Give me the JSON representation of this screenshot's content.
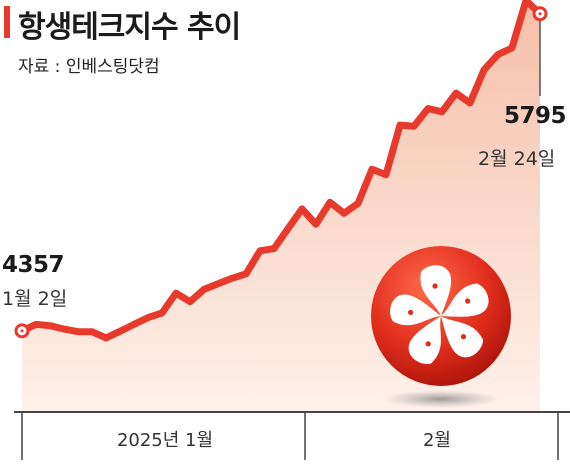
{
  "header": {
    "title": "항생테크지수 추이",
    "source": "자료 : 인베스팅닷컴"
  },
  "annotations": {
    "start_value": "4357",
    "start_date": "1월 2일",
    "end_value": "5795",
    "end_date": "2월 24일"
  },
  "colors": {
    "line": "#e83a2c",
    "area_top": "#f6bfa8",
    "area_bottom": "#fdf1ea",
    "axis": "#444444"
  },
  "chart_data": {
    "type": "area",
    "title": "항생테크지수 추이",
    "xlabel": "",
    "ylabel": "",
    "x_tick_labels": [
      "2025년 1월",
      "2월"
    ],
    "ylim": [
      4270,
      5830
    ],
    "x": [
      0,
      1,
      2,
      3,
      4,
      5,
      6,
      7,
      8,
      9,
      10,
      11,
      12,
      13,
      14,
      15,
      16,
      17,
      18,
      19,
      20,
      21,
      22,
      23,
      24,
      25,
      26,
      27,
      28,
      29,
      30,
      31,
      32,
      33,
      34,
      35,
      36,
      37
    ],
    "values": [
      4357,
      4386,
      4380,
      4365,
      4353,
      4353,
      4325,
      4355,
      4386,
      4417,
      4438,
      4528,
      4489,
      4545,
      4570,
      4595,
      4615,
      4720,
      4730,
      4820,
      4910,
      4840,
      4940,
      4890,
      4935,
      5090,
      5065,
      5290,
      5285,
      5365,
      5350,
      5435,
      5390,
      5540,
      5610,
      5640,
      5855,
      5795
    ],
    "series": [
      {
        "name": "",
        "values": "see values"
      }
    ],
    "grid": false,
    "legend": "none"
  }
}
